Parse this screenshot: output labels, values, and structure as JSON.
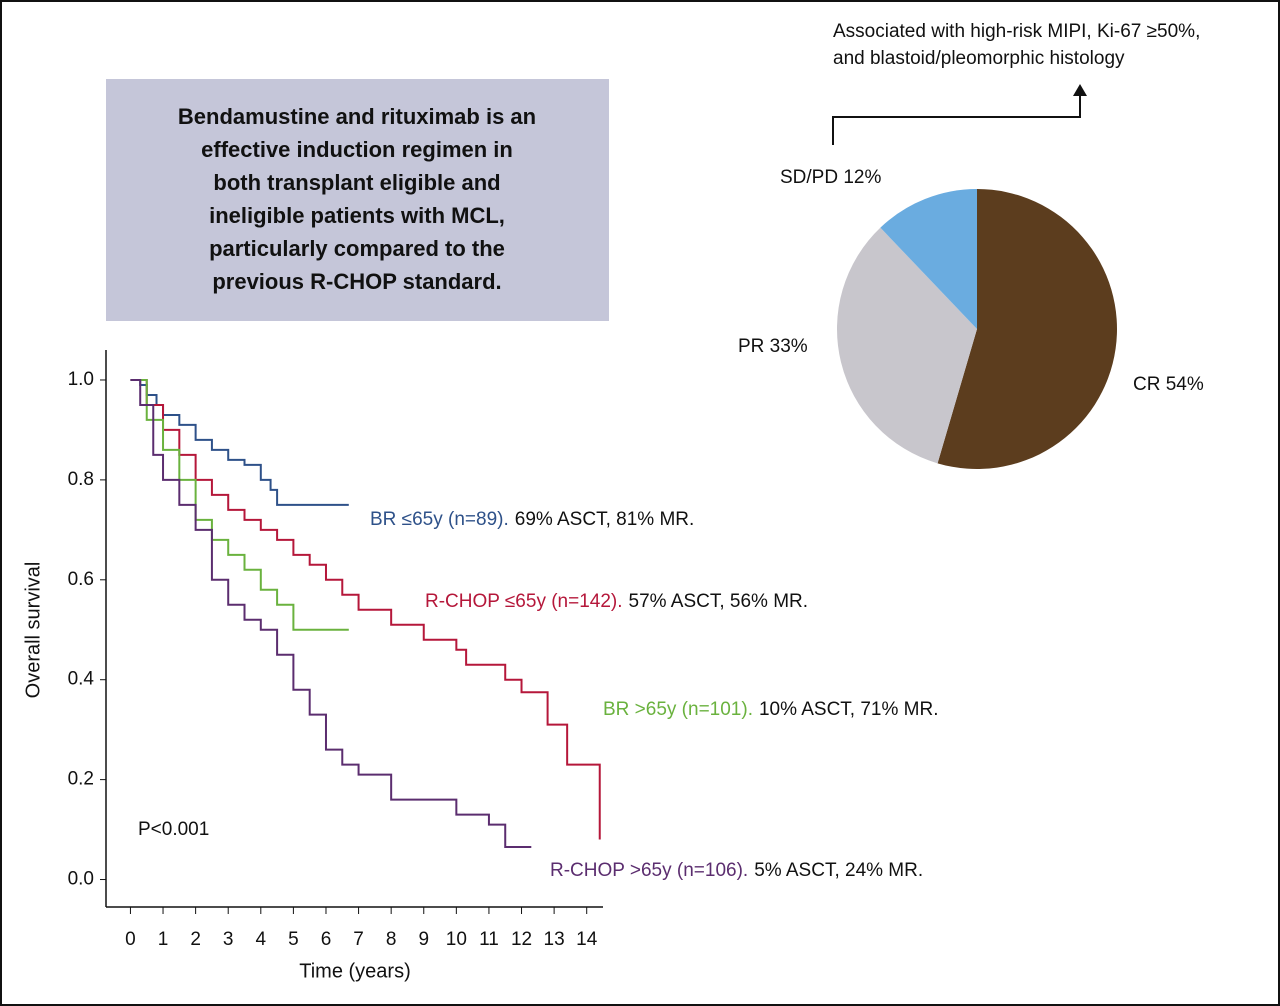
{
  "summary": {
    "lines": [
      "Bendamustine and rituximab is an",
      "effective induction regimen in",
      "both transplant eligible and",
      "ineligible patients with MCL,",
      "particularly compared to the",
      "previous R-CHOP standard."
    ]
  },
  "chart_data": [
    {
      "type": "step",
      "xlabel": "Time (years)",
      "ylabel": "Overall survival",
      "annotation": "P<0.001",
      "xlim": [
        -0.75,
        14.5
      ],
      "ylim": [
        -0.055,
        1.06
      ],
      "xticks": [
        0,
        1,
        2,
        3,
        4,
        5,
        6,
        7,
        8,
        9,
        10,
        11,
        12,
        13,
        14
      ],
      "yticks": [
        {
          "value": 0,
          "label": "0.0"
        },
        0.2,
        0.4,
        0.6,
        0.8,
        {
          "value": 1,
          "label": "1.0"
        }
      ],
      "series": [
        {
          "name": "BR ≤65y (n=89).",
          "note": "69% ASCT, 81% MR.",
          "color": "#2e5189",
          "x": [
            0,
            0.3,
            0.5,
            0.8,
            1,
            1.5,
            2,
            2.5,
            3,
            3.5,
            4,
            4.3,
            4.5,
            5,
            6,
            6.7
          ],
          "values": [
            1,
            0.99,
            0.97,
            0.95,
            0.93,
            0.91,
            0.88,
            0.86,
            0.84,
            0.83,
            0.8,
            0.78,
            0.75,
            0.75,
            0.75,
            0.75
          ]
        },
        {
          "name": "R-CHOP ≤65y (n=142).",
          "note": "57% ASCT, 56% MR.",
          "color": "#b5173a",
          "x": [
            0,
            0.5,
            1,
            1.5,
            2,
            2.5,
            3,
            3.5,
            4,
            4.5,
            5,
            5.5,
            6,
            6.5,
            7,
            8,
            9,
            10,
            10.3,
            11,
            11.5,
            12,
            12.6,
            12.8,
            13.3,
            13.4,
            14.4,
            14.4
          ],
          "values": [
            1,
            0.95,
            0.9,
            0.85,
            0.8,
            0.77,
            0.74,
            0.72,
            0.7,
            0.68,
            0.65,
            0.63,
            0.6,
            0.57,
            0.54,
            0.51,
            0.48,
            0.46,
            0.43,
            0.43,
            0.4,
            0.375,
            0.375,
            0.31,
            0.31,
            0.23,
            0.23,
            0.08
          ]
        },
        {
          "name": "BR >65y (n=101).",
          "note": "10% ASCT, 71% MR.",
          "color": "#6ab23e",
          "x": [
            0,
            0.5,
            1,
            1.5,
            2,
            2.5,
            3,
            3.5,
            4,
            4.5,
            5,
            6,
            6.7
          ],
          "values": [
            1,
            0.92,
            0.86,
            0.8,
            0.72,
            0.68,
            0.65,
            0.62,
            0.58,
            0.55,
            0.5,
            0.5,
            0.5
          ]
        },
        {
          "name": "R-CHOP >65y (n=106).",
          "note": "5% ASCT, 24% MR.",
          "color": "#5b2d6f",
          "x": [
            0,
            0.3,
            0.7,
            1,
            1.5,
            2,
            2.5,
            3,
            3.5,
            4,
            4.5,
            5,
            5.5,
            6,
            6.5,
            7,
            8,
            9,
            10,
            11,
            11.5,
            12.3
          ],
          "values": [
            1,
            0.95,
            0.85,
            0.8,
            0.75,
            0.7,
            0.6,
            0.55,
            0.52,
            0.5,
            0.45,
            0.38,
            0.33,
            0.26,
            0.23,
            0.21,
            0.16,
            0.16,
            0.13,
            0.11,
            0.065,
            0.065
          ]
        }
      ]
    },
    {
      "type": "pie",
      "annotation": [
        "Associated with high-risk MIPI, Ki-67 ≥50%,",
        "and blastoid/pleomorphic histology"
      ],
      "values": [
        54,
        33,
        12
      ],
      "value_labels": [
        "CR 54%",
        "PR 33%",
        "SD/PD 12%"
      ],
      "colors": [
        "#5c3d1e",
        "#c8c6cc",
        "#6aace0"
      ]
    }
  ]
}
